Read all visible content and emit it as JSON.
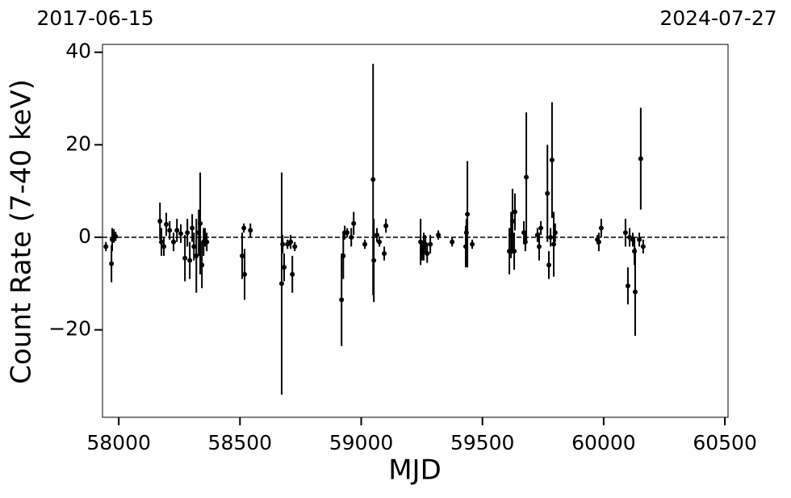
{
  "chart_data": {
    "type": "errorbar",
    "xlabel": "MJD",
    "ylabel": "Count Rate (7-40 keV)",
    "top_left_label": "2017-06-15",
    "top_right_label": "2024-07-27",
    "color": "#000000",
    "xlim": [
      57933,
      60513
    ],
    "ylim": [
      -38.9,
      41.7
    ],
    "xticks": [
      58000,
      58500,
      59000,
      59500,
      60000,
      60500
    ],
    "yticks": [
      {
        "value": -20,
        "label": "−20"
      },
      0,
      20,
      40
    ],
    "hline": 0,
    "x": [
      57947,
      57970,
      57973,
      57980,
      57987,
      58170,
      58176,
      58186,
      58196,
      58210,
      58226,
      58240,
      58256,
      58273,
      58283,
      58293,
      58303,
      58310,
      58320,
      58330,
      58336,
      58343,
      58350,
      58356,
      58363,
      58509,
      58516,
      58519,
      58543,
      58672,
      58676,
      58682,
      58696,
      58709,
      58716,
      58726,
      58919,
      58926,
      58932,
      58942,
      58959,
      58969,
      59015,
      59049,
      59052,
      59065,
      59075,
      59095,
      59102,
      59245,
      59251,
      59258,
      59265,
      59272,
      59285,
      59318,
      59375,
      59431,
      59434,
      59438,
      59458,
      59611,
      59618,
      59624,
      59631,
      59634,
      59671,
      59677,
      59681,
      59727,
      59734,
      59741,
      59768,
      59774,
      59781,
      59787,
      59794,
      59800,
      59974,
      59980,
      59990,
      60090,
      60100,
      60107,
      60120,
      60127,
      60130,
      60147,
      60153,
      60163
    ],
    "values": [
      -2,
      -5.7,
      -0.5,
      0.3,
      0.2,
      3.5,
      -1,
      -2,
      2.8,
      1.5,
      -1,
      1.5,
      0.8,
      -4.5,
      1,
      -5,
      2,
      -2,
      -4,
      1,
      3,
      -6,
      -1,
      0,
      -1,
      -4,
      2,
      -8,
      1.5,
      -10,
      -1.5,
      -6.5,
      -1.5,
      -1,
      -8,
      -2,
      -13.5,
      -4,
      1,
      1,
      0,
      3,
      -1.5,
      12.5,
      -5,
      0.5,
      -1,
      -3.5,
      2.5,
      -1,
      -3,
      -2,
      -1.5,
      -3.5,
      -1.5,
      0.5,
      -1,
      -2,
      1,
      5,
      -1.5,
      -3,
      0.5,
      3.5,
      -3,
      5.5,
      1,
      -1,
      13,
      0.5,
      -2,
      2,
      9.5,
      -6,
      0,
      16.7,
      -1.5,
      1,
      -0.5,
      -1,
      2,
      1,
      -10.5,
      0,
      -0.5,
      -3,
      -11.8,
      -0.5,
      17,
      -2
    ],
    "errors": [
      1,
      4,
      2.5,
      1.5,
      1,
      4,
      3,
      2,
      2.5,
      2,
      2,
      2.5,
      2,
      5,
      3,
      4,
      3,
      3,
      8,
      5,
      11,
      5,
      3,
      2,
      2,
      5,
      1,
      5.5,
      1.5,
      24,
      2,
      3,
      1,
      1.5,
      4,
      1,
      10,
      5,
      1.5,
      1,
      2,
      2.5,
      1,
      25,
      9,
      1.5,
      1,
      1.5,
      1.5,
      5,
      2,
      3,
      2,
      2,
      2,
      1,
      1,
      4.5,
      3,
      11.5,
      1,
      5,
      5,
      7,
      4,
      4,
      2.5,
      2,
      14,
      1.5,
      3,
      1.5,
      10.5,
      3,
      2,
      12.5,
      7,
      2,
      1,
      2,
      2,
      3,
      4,
      2,
      1.5,
      3,
      9.5,
      1.5,
      11,
      1.5
    ]
  }
}
